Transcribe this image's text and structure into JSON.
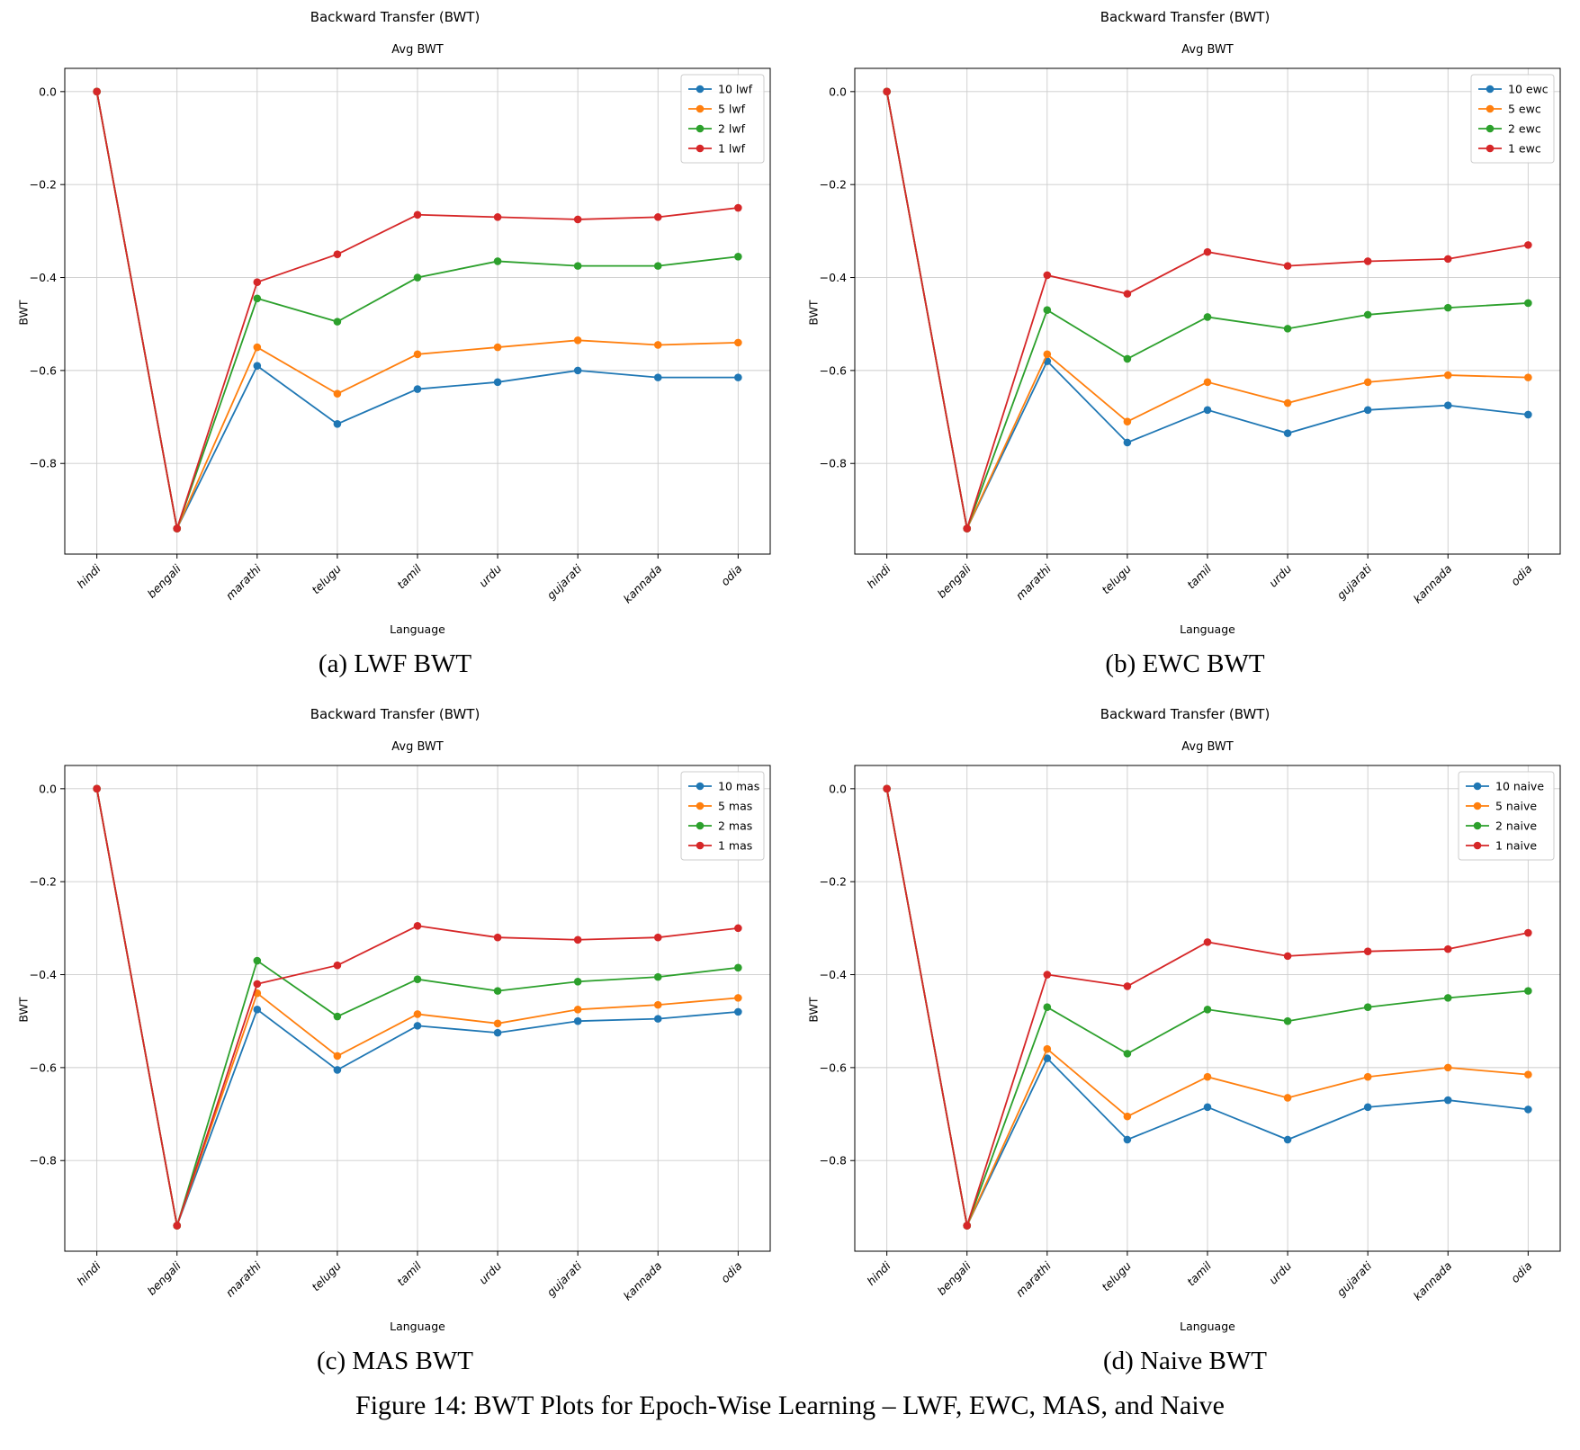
{
  "figure": {
    "caption": "Figure 14: BWT Plots for Epoch-Wise Learning – LWF, EWC, MAS, and Naive"
  },
  "chart_data": [
    {
      "id": "lwf",
      "type": "line",
      "title": "Backward Transfer (BWT)",
      "subtitle": "Avg BWT",
      "xlabel": "Language",
      "ylabel": "BWT",
      "caption": "(a) LWF BWT",
      "categories": [
        "hindi",
        "bengali",
        "marathi",
        "telugu",
        "tamil",
        "urdu",
        "gujarati",
        "kannada",
        "odia"
      ],
      "ylim": [
        0.05,
        -0.995
      ],
      "yticks": [
        0.0,
        -0.2,
        -0.4,
        -0.6,
        -0.8
      ],
      "grid": true,
      "legend_position": "top-right",
      "series": [
        {
          "name": "10 lwf",
          "color": "#1f77b4",
          "values": [
            0.0,
            -0.94,
            -0.59,
            -0.715,
            -0.64,
            -0.625,
            -0.6,
            -0.615,
            -0.615
          ]
        },
        {
          "name": "5 lwf",
          "color": "#ff7f0e",
          "values": [
            0.0,
            -0.94,
            -0.55,
            -0.65,
            -0.565,
            -0.55,
            -0.535,
            -0.545,
            -0.54
          ]
        },
        {
          "name": "2 lwf",
          "color": "#2ca02c",
          "values": [
            0.0,
            -0.94,
            -0.445,
            -0.495,
            -0.4,
            -0.365,
            -0.375,
            -0.375,
            -0.355
          ]
        },
        {
          "name": "1 lwf",
          "color": "#d62728",
          "values": [
            0.0,
            -0.94,
            -0.41,
            -0.35,
            -0.265,
            -0.27,
            -0.275,
            -0.27,
            -0.25
          ]
        }
      ]
    },
    {
      "id": "ewc",
      "type": "line",
      "title": "Backward Transfer (BWT)",
      "subtitle": "Avg BWT",
      "xlabel": "Language",
      "ylabel": "BWT",
      "caption": "(b) EWC BWT",
      "categories": [
        "hindi",
        "bengali",
        "marathi",
        "telugu",
        "tamil",
        "urdu",
        "gujarati",
        "kannada",
        "odia"
      ],
      "ylim": [
        0.05,
        -0.995
      ],
      "yticks": [
        0.0,
        -0.2,
        -0.4,
        -0.6,
        -0.8
      ],
      "grid": true,
      "legend_position": "top-right",
      "series": [
        {
          "name": "10 ewc",
          "color": "#1f77b4",
          "values": [
            0.0,
            -0.94,
            -0.58,
            -0.755,
            -0.685,
            -0.735,
            -0.685,
            -0.675,
            -0.695
          ]
        },
        {
          "name": "5 ewc",
          "color": "#ff7f0e",
          "values": [
            0.0,
            -0.94,
            -0.565,
            -0.71,
            -0.625,
            -0.67,
            -0.625,
            -0.61,
            -0.615
          ]
        },
        {
          "name": "2 ewc",
          "color": "#2ca02c",
          "values": [
            0.0,
            -0.94,
            -0.47,
            -0.575,
            -0.485,
            -0.51,
            -0.48,
            -0.465,
            -0.455
          ]
        },
        {
          "name": "1 ewc",
          "color": "#d62728",
          "values": [
            0.0,
            -0.94,
            -0.395,
            -0.435,
            -0.345,
            -0.375,
            -0.365,
            -0.36,
            -0.33
          ]
        }
      ]
    },
    {
      "id": "mas",
      "type": "line",
      "title": "Backward Transfer (BWT)",
      "subtitle": "Avg BWT",
      "xlabel": "Language",
      "ylabel": "BWT",
      "caption": "(c) MAS BWT",
      "categories": [
        "hindi",
        "bengali",
        "marathi",
        "telugu",
        "tamil",
        "urdu",
        "gujarati",
        "kannada",
        "odia"
      ],
      "ylim": [
        0.05,
        -0.995
      ],
      "yticks": [
        0.0,
        -0.2,
        -0.4,
        -0.6,
        -0.8
      ],
      "grid": true,
      "legend_position": "top-right",
      "series": [
        {
          "name": "10 mas",
          "color": "#1f77b4",
          "values": [
            0.0,
            -0.94,
            -0.475,
            -0.605,
            -0.51,
            -0.525,
            -0.5,
            -0.495,
            -0.48
          ]
        },
        {
          "name": "5 mas",
          "color": "#ff7f0e",
          "values": [
            0.0,
            -0.94,
            -0.44,
            -0.575,
            -0.485,
            -0.505,
            -0.475,
            -0.465,
            -0.45
          ]
        },
        {
          "name": "2 mas",
          "color": "#2ca02c",
          "values": [
            0.0,
            -0.94,
            -0.37,
            -0.49,
            -0.41,
            -0.435,
            -0.415,
            -0.405,
            -0.385
          ]
        },
        {
          "name": "1 mas",
          "color": "#d62728",
          "values": [
            0.0,
            -0.94,
            -0.42,
            -0.38,
            -0.295,
            -0.32,
            -0.325,
            -0.32,
            -0.3
          ]
        }
      ]
    },
    {
      "id": "naive",
      "type": "line",
      "title": "Backward Transfer (BWT)",
      "subtitle": "Avg BWT",
      "xlabel": "Language",
      "ylabel": "BWT",
      "caption": "(d) Naive BWT",
      "categories": [
        "hindi",
        "bengali",
        "marathi",
        "telugu",
        "tamil",
        "urdu",
        "gujarati",
        "kannada",
        "odia"
      ],
      "ylim": [
        0.05,
        -0.995
      ],
      "yticks": [
        0.0,
        -0.2,
        -0.4,
        -0.6,
        -0.8
      ],
      "grid": true,
      "legend_position": "top-right",
      "series": [
        {
          "name": "10 naive",
          "color": "#1f77b4",
          "values": [
            0.0,
            -0.94,
            -0.58,
            -0.755,
            -0.685,
            -0.755,
            -0.685,
            -0.67,
            -0.69
          ]
        },
        {
          "name": "5 naive",
          "color": "#ff7f0e",
          "values": [
            0.0,
            -0.94,
            -0.56,
            -0.705,
            -0.62,
            -0.665,
            -0.62,
            -0.6,
            -0.615
          ]
        },
        {
          "name": "2 naive",
          "color": "#2ca02c",
          "values": [
            0.0,
            -0.94,
            -0.47,
            -0.57,
            -0.475,
            -0.5,
            -0.47,
            -0.45,
            -0.435
          ]
        },
        {
          "name": "1 naive",
          "color": "#d62728",
          "values": [
            0.0,
            -0.94,
            -0.4,
            -0.425,
            -0.33,
            -0.36,
            -0.35,
            -0.345,
            -0.31
          ]
        }
      ]
    }
  ]
}
